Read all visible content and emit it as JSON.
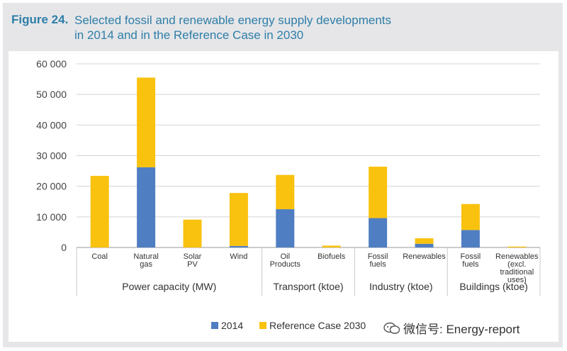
{
  "figure": {
    "number": "Figure 24.",
    "title_line1": "Selected fossil and renewable energy supply developments",
    "title_line2": "in 2014 and in the Reference Case in 2030"
  },
  "chart_data": {
    "type": "bar",
    "stacked": true,
    "ylim": [
      0,
      60000
    ],
    "yticks": [
      0,
      10000,
      20000,
      30000,
      40000,
      50000,
      60000
    ],
    "ytick_labels": [
      "0",
      "10 000",
      "20 000",
      "30 000",
      "40 000",
      "50 000",
      "60 000"
    ],
    "grid": true,
    "legend_position": "bottom-center",
    "categories": [
      [
        "Coal"
      ],
      [
        "Natural",
        "gas"
      ],
      [
        "Solar",
        "PV"
      ],
      [
        "Wind"
      ],
      [
        "Oil",
        "Products"
      ],
      [
        "Biofuels"
      ],
      [
        "Fossil",
        "fuels"
      ],
      [
        "Renewables"
      ],
      [
        "Fossil",
        "fuels"
      ],
      [
        "Renewables",
        "(excl.",
        "traditional",
        "uses)"
      ]
    ],
    "groups": [
      {
        "label": "Power capacity (MW)",
        "start": 0,
        "end": 3
      },
      {
        "label": "Transport (ktoe)",
        "start": 4,
        "end": 5
      },
      {
        "label": "Industry (ktoe)",
        "start": 6,
        "end": 7
      },
      {
        "label": "Buildings (ktoe)",
        "start": 8,
        "end": 9
      }
    ],
    "series": [
      {
        "name": "2014",
        "color": "#4f7ec2",
        "values": [
          0,
          26200,
          0,
          500,
          12500,
          0,
          9600,
          1200,
          5700,
          0
        ]
      },
      {
        "name": "Reference Case 2030",
        "color": "#f9c20f",
        "values": [
          23400,
          29300,
          9100,
          17300,
          11200,
          600,
          16800,
          1800,
          8500,
          300
        ]
      }
    ]
  },
  "watermark": {
    "text": "微信号: Energy-report",
    "icon": "wechat-icon"
  }
}
